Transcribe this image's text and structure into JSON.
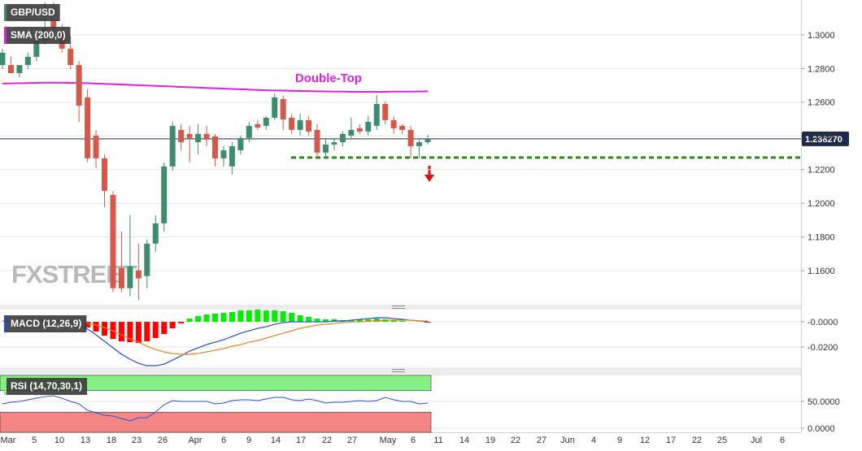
{
  "chart_data": [
    {
      "type": "candlestick",
      "title": "GBP/USD",
      "watermark": "FXSTREET",
      "color_up": "#3e8c6e",
      "color_down": "#d5594b",
      "open": [
        1.2821,
        1.2821,
        1.2773,
        1.2821,
        1.287,
        1.2966,
        1.3087,
        1.3014,
        1.2918,
        1.2821,
        1.2629,
        1.2402,
        1.2267,
        1.205,
        1.1616,
        1.1496,
        1.1602,
        1.1568,
        1.1761,
        1.1881,
        1.2219,
        1.2436,
        1.2412,
        1.2363,
        1.2412,
        1.2397,
        1.2267,
        1.2219,
        1.2315,
        1.2388,
        1.247,
        1.246,
        1.2508,
        1.2619,
        1.2508,
        1.2436,
        1.2494,
        1.2436,
        1.2301,
        1.2349,
        1.2363,
        1.2402,
        1.2445,
        1.2426,
        1.246,
        1.259,
        1.2494,
        1.246,
        1.2436,
        1.2339,
        1.2363
      ],
      "high": [
        1.2918,
        1.287,
        1.2821,
        1.2894,
        1.299,
        1.3193,
        1.3193,
        1.3062,
        1.299,
        1.2845,
        1.2677,
        1.2436,
        1.2291,
        1.2074,
        1.1833,
        1.193,
        1.1761,
        1.1785,
        1.193,
        1.2243,
        1.2484,
        1.247,
        1.246,
        1.247,
        1.246,
        1.2412,
        1.2339,
        1.2363,
        1.2402,
        1.2484,
        1.2494,
        1.2518,
        1.2653,
        1.2639,
        1.2532,
        1.2532,
        1.2518,
        1.247,
        1.2388,
        1.2388,
        1.2426,
        1.2508,
        1.247,
        1.2518,
        1.2643,
        1.2605,
        1.2518,
        1.247,
        1.246,
        1.2388,
        1.2407
      ],
      "low": [
        1.2797,
        1.2773,
        1.2749,
        1.2797,
        1.2845,
        1.2942,
        1.3014,
        1.2894,
        1.2797,
        1.2484,
        1.2243,
        1.2209,
        1.1978,
        1.1472,
        1.1472,
        1.1448,
        1.1424,
        1.1496,
        1.1713,
        1.1833,
        1.2195,
        1.2315,
        1.2243,
        1.2291,
        1.2339,
        1.2219,
        1.2219,
        1.2171,
        1.2291,
        1.2363,
        1.2436,
        1.2436,
        1.2494,
        1.2436,
        1.2412,
        1.2402,
        1.2402,
        1.2267,
        1.2267,
        1.2315,
        1.2339,
        1.2378,
        1.2412,
        1.2402,
        1.2436,
        1.247,
        1.2412,
        1.2412,
        1.2267,
        1.2267,
        1.2349
      ],
      "close": [
        1.2894,
        1.2773,
        1.2821,
        1.287,
        1.2966,
        1.3038,
        1.3038,
        1.2918,
        1.2821,
        1.258,
        1.2267,
        1.2267,
        1.2074,
        1.1496,
        1.1496,
        1.1626,
        1.1554,
        1.1761,
        1.1881,
        1.2219,
        1.246,
        1.2363,
        1.2388,
        1.2412,
        1.2378,
        1.2267,
        1.2315,
        1.2339,
        1.2388,
        1.246,
        1.245,
        1.2508,
        1.2629,
        1.2498,
        1.2436,
        1.2494,
        1.2426,
        1.2301,
        1.2349,
        1.2363,
        1.2412,
        1.2436,
        1.2426,
        1.2484,
        1.259,
        1.2494,
        1.2445,
        1.2436,
        1.2339,
        1.2363,
        1.2383
      ],
      "series": [
        {
          "name": "SMA (200,0)",
          "color": "#e21ee2",
          "values": [
            1.2711,
            1.2712,
            1.2713,
            1.2714,
            1.2715,
            1.2716,
            1.2716,
            1.2716,
            1.2715,
            1.2714,
            1.2713,
            1.2711,
            1.2709,
            1.2707,
            1.2705,
            1.2703,
            1.2701,
            1.2699,
            1.2697,
            1.2695,
            1.2693,
            1.2691,
            1.2689,
            1.2687,
            1.2685,
            1.2683,
            1.2681,
            1.2679,
            1.2677,
            1.2675,
            1.2673,
            1.2671,
            1.267,
            1.2669,
            1.2668,
            1.2667,
            1.2666,
            1.2665,
            1.2664,
            1.2663,
            1.2663,
            1.2662,
            1.2662,
            1.2662,
            1.2662,
            1.2662,
            1.2663,
            1.2663,
            1.2663,
            1.2664,
            1.2664
          ]
        }
      ],
      "annotation": {
        "text": "Double-Top",
        "color": "#e21ee2"
      },
      "support_level": 1.2272,
      "support_color": "#2e8b12",
      "last_price": {
        "value": 1.23827,
        "label": "1.238270"
      },
      "ylim": [
        1.1398,
        1.3207
      ],
      "yticks": [
        {
          "value": 1.16,
          "label": "1.1600"
        },
        {
          "value": 1.18,
          "label": "1.1800"
        },
        {
          "value": 1.2,
          "label": "1.2000"
        },
        {
          "value": 1.22,
          "label": "1.2200"
        },
        {
          "value": 1.24,
          "label": "1.2400"
        },
        {
          "value": 1.26,
          "label": "1.2600"
        },
        {
          "value": 1.28,
          "label": "1.2800"
        },
        {
          "value": 1.3,
          "label": "1.3000"
        }
      ],
      "grid": true,
      "xtick_labels": [
        "Mar",
        "5",
        "10",
        "13",
        "18",
        "23",
        "26",
        "Apr",
        "6",
        "9",
        "14",
        "17",
        "22",
        "27",
        "May",
        "6",
        "11",
        "14",
        "19",
        "22",
        "27",
        "Jun",
        "4",
        "9",
        "12",
        "17",
        "22",
        "25",
        "Jul",
        "6"
      ]
    },
    {
      "type": "macd",
      "title": "MACD (12,26,9)",
      "histogram": {
        "color_up": "#00ee00",
        "color_down": "#ff0000",
        "values": [
          0,
          0,
          0,
          0.00065,
          0.00065,
          0.00065,
          0,
          -0.00065,
          -0.00065,
          -0.00194,
          -0.00452,
          -0.00774,
          -0.01097,
          -0.01355,
          -0.01548,
          -0.01613,
          -0.01677,
          -0.01548,
          -0.0129,
          -0.00968,
          -0.00516,
          -0.00129,
          0.00258,
          0.00452,
          0.00581,
          0.00645,
          0.0071,
          0.00774,
          0.00903,
          0.00903,
          0.00968,
          0.00903,
          0.00903,
          0.00839,
          0.0071,
          0.00516,
          0.00387,
          0.00258,
          0.00194,
          0.00194,
          0.00129,
          0.00129,
          0.00194,
          0.00194,
          0.00258,
          0.00194,
          0.00129,
          0.00065,
          0,
          0,
          -0.00065
        ]
      },
      "macd": {
        "color": "#2449d8",
        "values": [
          0.00065,
          0.00065,
          0.00065,
          0.00129,
          0.00129,
          0.00129,
          0.00065,
          0,
          -0.00065,
          -0.00258,
          -0.00581,
          -0.01032,
          -0.01548,
          -0.02064,
          -0.0258,
          -0.02967,
          -0.0329,
          -0.03483,
          -0.03483,
          -0.03354,
          -0.03032,
          -0.02709,
          -0.02322,
          -0.02064,
          -0.01806,
          -0.01613,
          -0.01419,
          -0.01161,
          -0.00903,
          -0.0071,
          -0.00516,
          -0.00387,
          -0.00194,
          -0.00065,
          0,
          0,
          0,
          0,
          0,
          0.00065,
          0.00065,
          0.00129,
          0.00194,
          0.00258,
          0.00323,
          0.00323,
          0.00258,
          0.00194,
          0.00129,
          0.00065,
          0
        ]
      },
      "signal": {
        "color": "#f07c1e",
        "values": [
          0.00065,
          0.00065,
          0.00065,
          0.00065,
          0.00065,
          0.00065,
          0.00065,
          0.00065,
          0,
          -0.00065,
          -0.00129,
          -0.00258,
          -0.00452,
          -0.0071,
          -0.01032,
          -0.01355,
          -0.01613,
          -0.01935,
          -0.02193,
          -0.02387,
          -0.02516,
          -0.0258,
          -0.0258,
          -0.02516,
          -0.02387,
          -0.02258,
          -0.02129,
          -0.01935,
          -0.01806,
          -0.01613,
          -0.01484,
          -0.0129,
          -0.01097,
          -0.00903,
          -0.0071,
          -0.00516,
          -0.00387,
          -0.00258,
          -0.00194,
          -0.00129,
          -0.00065,
          0,
          0,
          0.00065,
          0.00065,
          0.00129,
          0.00129,
          0.00129,
          0.00129,
          0.00065,
          0.00065
        ]
      },
      "ylim": [
        -0.0361,
        0.0097
      ],
      "yticks": [
        {
          "value": 0,
          "label": "-0.0000"
        },
        {
          "value": -0.02,
          "label": "-0.0200"
        }
      ],
      "grid": true
    },
    {
      "type": "rsi",
      "title": "RSI (14,70,30,1)",
      "color": "#2a52d6",
      "overbought": 70,
      "oversold": 30,
      "overbought_color": "#86f086",
      "oversold_color": "#f58686",
      "values": [
        45.5,
        48.5,
        50,
        53,
        56,
        59,
        60.6,
        56,
        50,
        45.5,
        33.3,
        28.8,
        24.2,
        22.7,
        18.2,
        13.6,
        19.7,
        19.7,
        30.3,
        43.9,
        51.5,
        50,
        50,
        50,
        50,
        45.5,
        47,
        51.5,
        53,
        53,
        51.5,
        54.5,
        57.6,
        57.6,
        53,
        51.5,
        54.5,
        51.5,
        47,
        48.5,
        48.5,
        50,
        51.5,
        50,
        51.5,
        57.6,
        53,
        50,
        50,
        45.5,
        47
      ],
      "ylim": [
        -7.6,
        98.5
      ],
      "yticks": [
        {
          "value": 0,
          "label": "0.0000"
        },
        {
          "value": 50,
          "label": "50.0000"
        }
      ],
      "grid": true
    }
  ]
}
